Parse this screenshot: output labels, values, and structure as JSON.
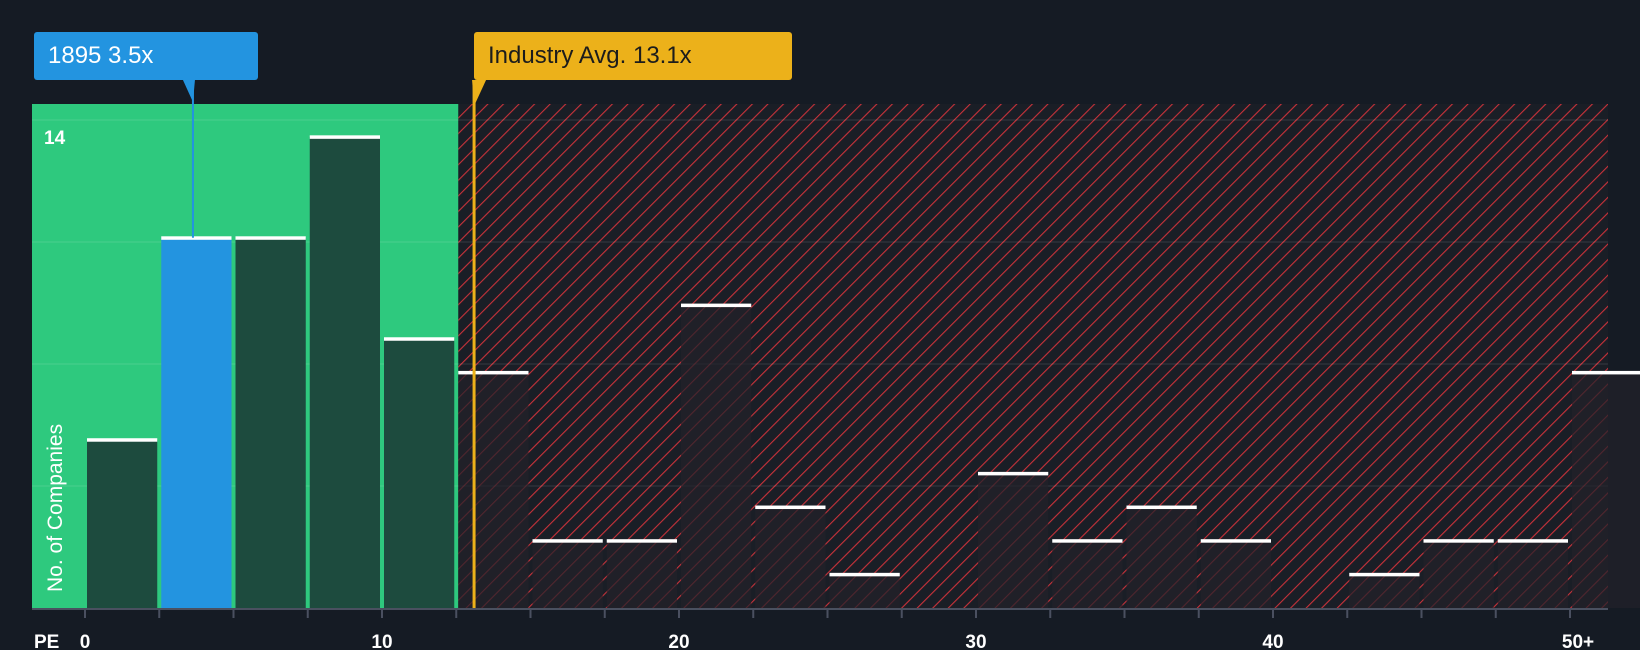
{
  "chart_data": {
    "type": "bar",
    "title": "",
    "xlabel": "PE",
    "ylabel": "No. of Companies",
    "x_ticks": [
      "0",
      "10",
      "20",
      "30",
      "40",
      "50+"
    ],
    "y_tick_label": "14",
    "ylim": [
      0,
      14.5
    ],
    "bin_width": 2.5,
    "bins": [
      {
        "start": 0,
        "value": 5,
        "highlight": false
      },
      {
        "start": 2.5,
        "value": 11,
        "highlight": true
      },
      {
        "start": 5,
        "value": 11,
        "highlight": false
      },
      {
        "start": 7.5,
        "value": 14,
        "highlight": false
      },
      {
        "start": 10,
        "value": 8,
        "highlight": false
      },
      {
        "start": 12.5,
        "value": 7,
        "highlight": false
      },
      {
        "start": 15,
        "value": 2,
        "highlight": false
      },
      {
        "start": 17.5,
        "value": 2,
        "highlight": false
      },
      {
        "start": 20,
        "value": 9,
        "highlight": false
      },
      {
        "start": 22.5,
        "value": 3,
        "highlight": false
      },
      {
        "start": 25,
        "value": 1,
        "highlight": false
      },
      {
        "start": 27.5,
        "value": 0,
        "highlight": false
      },
      {
        "start": 30,
        "value": 4,
        "highlight": false
      },
      {
        "start": 32.5,
        "value": 2,
        "highlight": false
      },
      {
        "start": 35,
        "value": 3,
        "highlight": false
      },
      {
        "start": 37.5,
        "value": 2,
        "highlight": false
      },
      {
        "start": 40,
        "value": 0,
        "highlight": false
      },
      {
        "start": 42.5,
        "value": 1,
        "highlight": false
      },
      {
        "start": 45,
        "value": 2,
        "highlight": false
      },
      {
        "start": 47.5,
        "value": 2,
        "highlight": false
      },
      {
        "start": 50,
        "value": 7,
        "highlight": false
      }
    ],
    "company": {
      "ticker": "1895",
      "value": 3.5,
      "label": "1895 3.5x"
    },
    "industry_avg": {
      "value": 13.1,
      "label": "Industry Avg. 13.1x"
    },
    "colors": {
      "background": "#151b24",
      "good_zone": "#2ec97e",
      "bar": "#1d4b3e",
      "highlight_bar": "#2394e0",
      "hatch": "#c8323a",
      "industry": "#ecb11a",
      "bar_cap": "#ffffff"
    }
  }
}
